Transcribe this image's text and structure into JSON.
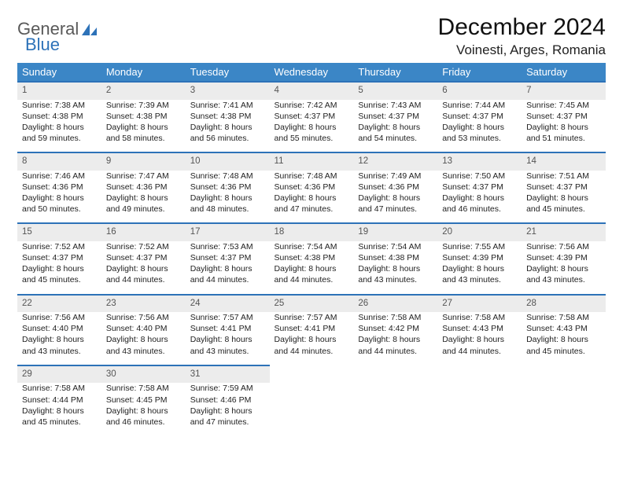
{
  "brand": {
    "word1": "General",
    "word2": "Blue"
  },
  "title": "December 2024",
  "location": "Voinesti, Arges, Romania",
  "colors": {
    "header_bg": "#3b86c6",
    "header_text": "#ffffff",
    "daynum_bg": "#ececec",
    "daynum_border": "#2d72b8",
    "body_bg": "#ffffff",
    "text": "#222222",
    "brand_gray": "#595959",
    "brand_blue": "#2d72b8"
  },
  "weekdays": [
    "Sunday",
    "Monday",
    "Tuesday",
    "Wednesday",
    "Thursday",
    "Friday",
    "Saturday"
  ],
  "weeks": [
    [
      {
        "d": "1",
        "sr": "Sunrise: 7:38 AM",
        "ss": "Sunset: 4:38 PM",
        "dl1": "Daylight: 8 hours",
        "dl2": "and 59 minutes."
      },
      {
        "d": "2",
        "sr": "Sunrise: 7:39 AM",
        "ss": "Sunset: 4:38 PM",
        "dl1": "Daylight: 8 hours",
        "dl2": "and 58 minutes."
      },
      {
        "d": "3",
        "sr": "Sunrise: 7:41 AM",
        "ss": "Sunset: 4:38 PM",
        "dl1": "Daylight: 8 hours",
        "dl2": "and 56 minutes."
      },
      {
        "d": "4",
        "sr": "Sunrise: 7:42 AM",
        "ss": "Sunset: 4:37 PM",
        "dl1": "Daylight: 8 hours",
        "dl2": "and 55 minutes."
      },
      {
        "d": "5",
        "sr": "Sunrise: 7:43 AM",
        "ss": "Sunset: 4:37 PM",
        "dl1": "Daylight: 8 hours",
        "dl2": "and 54 minutes."
      },
      {
        "d": "6",
        "sr": "Sunrise: 7:44 AM",
        "ss": "Sunset: 4:37 PM",
        "dl1": "Daylight: 8 hours",
        "dl2": "and 53 minutes."
      },
      {
        "d": "7",
        "sr": "Sunrise: 7:45 AM",
        "ss": "Sunset: 4:37 PM",
        "dl1": "Daylight: 8 hours",
        "dl2": "and 51 minutes."
      }
    ],
    [
      {
        "d": "8",
        "sr": "Sunrise: 7:46 AM",
        "ss": "Sunset: 4:36 PM",
        "dl1": "Daylight: 8 hours",
        "dl2": "and 50 minutes."
      },
      {
        "d": "9",
        "sr": "Sunrise: 7:47 AM",
        "ss": "Sunset: 4:36 PM",
        "dl1": "Daylight: 8 hours",
        "dl2": "and 49 minutes."
      },
      {
        "d": "10",
        "sr": "Sunrise: 7:48 AM",
        "ss": "Sunset: 4:36 PM",
        "dl1": "Daylight: 8 hours",
        "dl2": "and 48 minutes."
      },
      {
        "d": "11",
        "sr": "Sunrise: 7:48 AM",
        "ss": "Sunset: 4:36 PM",
        "dl1": "Daylight: 8 hours",
        "dl2": "and 47 minutes."
      },
      {
        "d": "12",
        "sr": "Sunrise: 7:49 AM",
        "ss": "Sunset: 4:36 PM",
        "dl1": "Daylight: 8 hours",
        "dl2": "and 47 minutes."
      },
      {
        "d": "13",
        "sr": "Sunrise: 7:50 AM",
        "ss": "Sunset: 4:37 PM",
        "dl1": "Daylight: 8 hours",
        "dl2": "and 46 minutes."
      },
      {
        "d": "14",
        "sr": "Sunrise: 7:51 AM",
        "ss": "Sunset: 4:37 PM",
        "dl1": "Daylight: 8 hours",
        "dl2": "and 45 minutes."
      }
    ],
    [
      {
        "d": "15",
        "sr": "Sunrise: 7:52 AM",
        "ss": "Sunset: 4:37 PM",
        "dl1": "Daylight: 8 hours",
        "dl2": "and 45 minutes."
      },
      {
        "d": "16",
        "sr": "Sunrise: 7:52 AM",
        "ss": "Sunset: 4:37 PM",
        "dl1": "Daylight: 8 hours",
        "dl2": "and 44 minutes."
      },
      {
        "d": "17",
        "sr": "Sunrise: 7:53 AM",
        "ss": "Sunset: 4:37 PM",
        "dl1": "Daylight: 8 hours",
        "dl2": "and 44 minutes."
      },
      {
        "d": "18",
        "sr": "Sunrise: 7:54 AM",
        "ss": "Sunset: 4:38 PM",
        "dl1": "Daylight: 8 hours",
        "dl2": "and 44 minutes."
      },
      {
        "d": "19",
        "sr": "Sunrise: 7:54 AM",
        "ss": "Sunset: 4:38 PM",
        "dl1": "Daylight: 8 hours",
        "dl2": "and 43 minutes."
      },
      {
        "d": "20",
        "sr": "Sunrise: 7:55 AM",
        "ss": "Sunset: 4:39 PM",
        "dl1": "Daylight: 8 hours",
        "dl2": "and 43 minutes."
      },
      {
        "d": "21",
        "sr": "Sunrise: 7:56 AM",
        "ss": "Sunset: 4:39 PM",
        "dl1": "Daylight: 8 hours",
        "dl2": "and 43 minutes."
      }
    ],
    [
      {
        "d": "22",
        "sr": "Sunrise: 7:56 AM",
        "ss": "Sunset: 4:40 PM",
        "dl1": "Daylight: 8 hours",
        "dl2": "and 43 minutes."
      },
      {
        "d": "23",
        "sr": "Sunrise: 7:56 AM",
        "ss": "Sunset: 4:40 PM",
        "dl1": "Daylight: 8 hours",
        "dl2": "and 43 minutes."
      },
      {
        "d": "24",
        "sr": "Sunrise: 7:57 AM",
        "ss": "Sunset: 4:41 PM",
        "dl1": "Daylight: 8 hours",
        "dl2": "and 43 minutes."
      },
      {
        "d": "25",
        "sr": "Sunrise: 7:57 AM",
        "ss": "Sunset: 4:41 PM",
        "dl1": "Daylight: 8 hours",
        "dl2": "and 44 minutes."
      },
      {
        "d": "26",
        "sr": "Sunrise: 7:58 AM",
        "ss": "Sunset: 4:42 PM",
        "dl1": "Daylight: 8 hours",
        "dl2": "and 44 minutes."
      },
      {
        "d": "27",
        "sr": "Sunrise: 7:58 AM",
        "ss": "Sunset: 4:43 PM",
        "dl1": "Daylight: 8 hours",
        "dl2": "and 44 minutes."
      },
      {
        "d": "28",
        "sr": "Sunrise: 7:58 AM",
        "ss": "Sunset: 4:43 PM",
        "dl1": "Daylight: 8 hours",
        "dl2": "and 45 minutes."
      }
    ],
    [
      {
        "d": "29",
        "sr": "Sunrise: 7:58 AM",
        "ss": "Sunset: 4:44 PM",
        "dl1": "Daylight: 8 hours",
        "dl2": "and 45 minutes."
      },
      {
        "d": "30",
        "sr": "Sunrise: 7:58 AM",
        "ss": "Sunset: 4:45 PM",
        "dl1": "Daylight: 8 hours",
        "dl2": "and 46 minutes."
      },
      {
        "d": "31",
        "sr": "Sunrise: 7:59 AM",
        "ss": "Sunset: 4:46 PM",
        "dl1": "Daylight: 8 hours",
        "dl2": "and 47 minutes."
      },
      null,
      null,
      null,
      null
    ]
  ]
}
